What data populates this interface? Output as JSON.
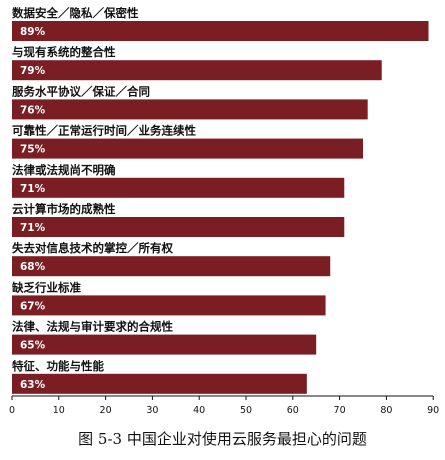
{
  "chart_data": {
    "type": "bar",
    "orientation": "horizontal",
    "categories": [
      "数据安全／隐私／保密性",
      "与现有系统的整合性",
      "服务水平协议／保证／合同",
      "可靠性／正常运行时间／业务连续性",
      "法律或法规尚不明确",
      "云计算市场的成熟性",
      "失去对信息技术的掌控／所有权",
      "缺乏行业标准",
      "法律、法规与审计要求的合规性",
      "特征、功能与性能"
    ],
    "values": [
      89,
      79,
      76,
      75,
      71,
      71,
      68,
      67,
      65,
      63
    ],
    "value_labels": [
      "89%",
      "79%",
      "76%",
      "75%",
      "71%",
      "71%",
      "68%",
      "67%",
      "65%",
      "63%"
    ],
    "xlim": [
      0,
      90
    ],
    "xticks": [
      "0",
      "10",
      "20",
      "30",
      "40",
      "50",
      "60",
      "70",
      "80",
      "90"
    ],
    "bar_color": "#7b1e24",
    "caption": "图 5-3 中国企业对使用云服务最担心的问题",
    "grid": false
  }
}
